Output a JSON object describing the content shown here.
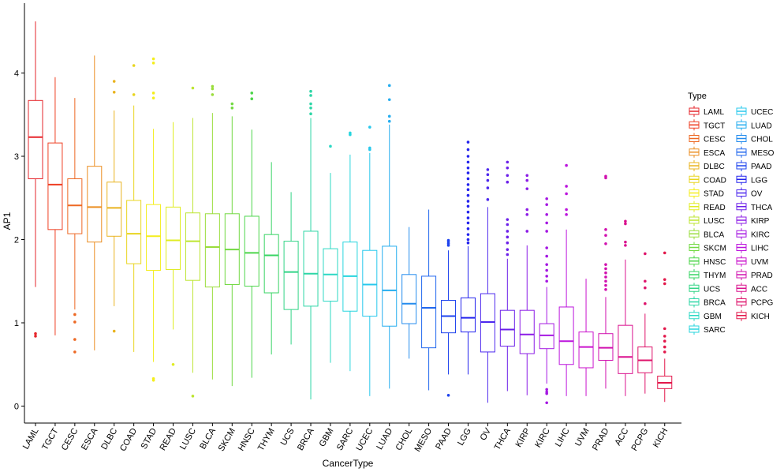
{
  "chart_data": {
    "type": "boxplot",
    "xlabel": "CancerType",
    "ylabel": "AP1",
    "ylim": [
      -0.08,
      4.78
    ],
    "yticks": [
      0,
      1,
      2,
      3,
      4
    ],
    "legend_title": "Type",
    "legend_position": "right",
    "grid": false,
    "categories": [
      "LAML",
      "TGCT",
      "CESC",
      "ESCA",
      "DLBC",
      "COAD",
      "STAD",
      "READ",
      "LUSC",
      "BLCA",
      "SKCM",
      "HNSC",
      "THYM",
      "UCS",
      "BRCA",
      "GBM",
      "SARC",
      "UCEC",
      "LUAD",
      "CHOL",
      "MESO",
      "PAAD",
      "LGG",
      "OV",
      "THCA",
      "KIRP",
      "KIRC",
      "LIHC",
      "UVM",
      "PRAD",
      "ACC",
      "PCPG",
      "KICH"
    ],
    "colors": [
      "#E6262B",
      "#EE3E22",
      "#ED6823",
      "#EB8E21",
      "#E9B31F",
      "#E8D520",
      "#F4EE1D",
      "#E0EC23",
      "#BDE531",
      "#9ADD3C",
      "#73D943",
      "#4CD54A",
      "#37D463",
      "#32D486",
      "#2DD6A6",
      "#2CD8C4",
      "#27D5DE",
      "#28C8EC",
      "#25ADEF",
      "#248CEE",
      "#2167EE",
      "#1E43EE",
      "#2424EE",
      "#4D28EE",
      "#6B1FE9",
      "#8C1CE6",
      "#A518E2",
      "#BC15DD",
      "#CA13CC",
      "#D111AF",
      "#DA108E",
      "#DE136B",
      "#E2174A"
    ],
    "boxes": [
      {
        "q1": 2.73,
        "median": 3.23,
        "q3": 3.67,
        "low": 1.43,
        "high": 4.62,
        "outliers": [
          0.84,
          0.87
        ]
      },
      {
        "q1": 2.12,
        "median": 2.66,
        "q3": 3.16,
        "low": 0.85,
        "high": 3.95,
        "outliers": []
      },
      {
        "q1": 2.07,
        "median": 2.41,
        "q3": 2.73,
        "low": 1.16,
        "high": 3.7,
        "outliers": [
          1.1,
          1.01,
          0.8,
          0.65
        ]
      },
      {
        "q1": 1.97,
        "median": 2.39,
        "q3": 2.88,
        "low": 0.67,
        "high": 4.21,
        "outliers": []
      },
      {
        "q1": 2.04,
        "median": 2.38,
        "q3": 2.69,
        "low": 1.2,
        "high": 3.55,
        "outliers": [
          3.9,
          3.77,
          0.9
        ]
      },
      {
        "q1": 1.71,
        "median": 2.07,
        "q3": 2.47,
        "low": 0.65,
        "high": 3.61,
        "outliers": [
          4.09,
          3.74
        ]
      },
      {
        "q1": 1.63,
        "median": 2.04,
        "q3": 2.42,
        "low": 0.53,
        "high": 3.33,
        "outliers": [
          4.17,
          4.12,
          3.76,
          3.7,
          0.33,
          0.31
        ]
      },
      {
        "q1": 1.64,
        "median": 1.99,
        "q3": 2.39,
        "low": 0.92,
        "high": 3.41,
        "outliers": [
          0.5
        ]
      },
      {
        "q1": 1.51,
        "median": 1.98,
        "q3": 2.32,
        "low": 0.4,
        "high": 3.46,
        "outliers": [
          3.82,
          0.12
        ]
      },
      {
        "q1": 1.43,
        "median": 1.91,
        "q3": 2.31,
        "low": 0.32,
        "high": 3.52,
        "outliers": [
          3.84,
          3.81,
          3.74
        ]
      },
      {
        "q1": 1.46,
        "median": 1.88,
        "q3": 2.31,
        "low": 0.24,
        "high": 3.48,
        "outliers": [
          3.63,
          3.58
        ]
      },
      {
        "q1": 1.44,
        "median": 1.84,
        "q3": 2.28,
        "low": 0.34,
        "high": 3.32,
        "outliers": [
          3.76,
          3.69
        ]
      },
      {
        "q1": 1.36,
        "median": 1.81,
        "q3": 2.06,
        "low": 0.62,
        "high": 2.93,
        "outliers": []
      },
      {
        "q1": 1.16,
        "median": 1.61,
        "q3": 1.98,
        "low": 0.74,
        "high": 2.57,
        "outliers": []
      },
      {
        "q1": 1.2,
        "median": 1.59,
        "q3": 2.1,
        "low": 0.08,
        "high": 3.46,
        "outliers": [
          3.78,
          3.73,
          3.63,
          3.58,
          3.51
        ]
      },
      {
        "q1": 1.26,
        "median": 1.58,
        "q3": 1.89,
        "low": 0.52,
        "high": 2.8,
        "outliers": [
          3.12
        ]
      },
      {
        "q1": 1.14,
        "median": 1.56,
        "q3": 1.97,
        "low": 0.42,
        "high": 3.02,
        "outliers": [
          3.28,
          3.26
        ]
      },
      {
        "q1": 1.08,
        "median": 1.46,
        "q3": 1.87,
        "low": 0.12,
        "high": 3.04,
        "outliers": [
          3.35,
          3.1,
          3.08
        ]
      },
      {
        "q1": 0.96,
        "median": 1.39,
        "q3": 1.92,
        "low": 0.21,
        "high": 3.38,
        "outliers": [
          3.85,
          3.68,
          3.48,
          3.42
        ]
      },
      {
        "q1": 0.99,
        "median": 1.23,
        "q3": 1.58,
        "low": 0.57,
        "high": 2.15,
        "outliers": []
      },
      {
        "q1": 0.7,
        "median": 1.18,
        "q3": 1.56,
        "low": 0.19,
        "high": 2.36,
        "outliers": []
      },
      {
        "q1": 0.88,
        "median": 1.08,
        "q3": 1.27,
        "low": 0.38,
        "high": 1.87,
        "outliers": [
          1.99,
          1.97,
          1.95,
          1.93,
          0.13
        ]
      },
      {
        "q1": 0.89,
        "median": 1.06,
        "q3": 1.3,
        "low": 0.38,
        "high": 1.92,
        "outliers": [
          3.17,
          3.08,
          3.0,
          2.93,
          2.86,
          2.8,
          2.73,
          2.66,
          2.6,
          2.53,
          2.46,
          2.4,
          2.33,
          2.26,
          2.2,
          2.13,
          2.06,
          2.0,
          1.96
        ]
      },
      {
        "q1": 0.65,
        "median": 1.01,
        "q3": 1.35,
        "low": 0.04,
        "high": 2.39,
        "outliers": [
          2.84,
          2.78,
          2.71,
          2.62,
          2.48
        ]
      },
      {
        "q1": 0.72,
        "median": 0.92,
        "q3": 1.15,
        "low": 0.18,
        "high": 1.77,
        "outliers": [
          2.93,
          2.86,
          2.77,
          2.69,
          2.24,
          2.18,
          2.1,
          2.03,
          1.96,
          1.88,
          1.82
        ]
      },
      {
        "q1": 0.63,
        "median": 0.86,
        "q3": 1.15,
        "low": 0.13,
        "high": 1.93,
        "outliers": [
          2.77,
          2.71,
          2.61,
          2.36,
          2.3,
          2.1
        ]
      },
      {
        "q1": 0.69,
        "median": 0.85,
        "q3": 0.99,
        "low": 0.27,
        "high": 1.43,
        "outliers": [
          2.49,
          2.42,
          2.3,
          2.2,
          2.1,
          1.9,
          1.8,
          1.7,
          1.63,
          1.56,
          1.5,
          0.2,
          0.17,
          0.15,
          0.04
        ]
      },
      {
        "q1": 0.5,
        "median": 0.78,
        "q3": 1.19,
        "low": 0.12,
        "high": 2.12,
        "outliers": [
          2.89,
          2.64,
          2.55,
          2.36,
          2.3
        ]
      },
      {
        "q1": 0.46,
        "median": 0.71,
        "q3": 0.89,
        "low": 0.12,
        "high": 1.53,
        "outliers": []
      },
      {
        "q1": 0.55,
        "median": 0.7,
        "q3": 0.87,
        "low": 0.21,
        "high": 1.31,
        "outliers": [
          2.76,
          2.74,
          2.12,
          2.05,
          1.95,
          1.7,
          1.65,
          1.6,
          1.55,
          1.5,
          1.45,
          1.4
        ]
      },
      {
        "q1": 0.39,
        "median": 0.59,
        "q3": 0.97,
        "low": 0.12,
        "high": 1.76,
        "outliers": [
          2.22,
          2.19,
          1.97,
          1.93
        ]
      },
      {
        "q1": 0.4,
        "median": 0.55,
        "q3": 0.71,
        "low": 0.15,
        "high": 1.11,
        "outliers": [
          1.83,
          1.5,
          1.42,
          1.23
        ]
      },
      {
        "q1": 0.21,
        "median": 0.28,
        "q3": 0.36,
        "low": 0.05,
        "high": 0.57,
        "outliers": [
          1.84,
          1.52,
          1.47,
          0.93,
          0.84,
          0.78,
          0.71,
          0.65
        ]
      }
    ]
  }
}
